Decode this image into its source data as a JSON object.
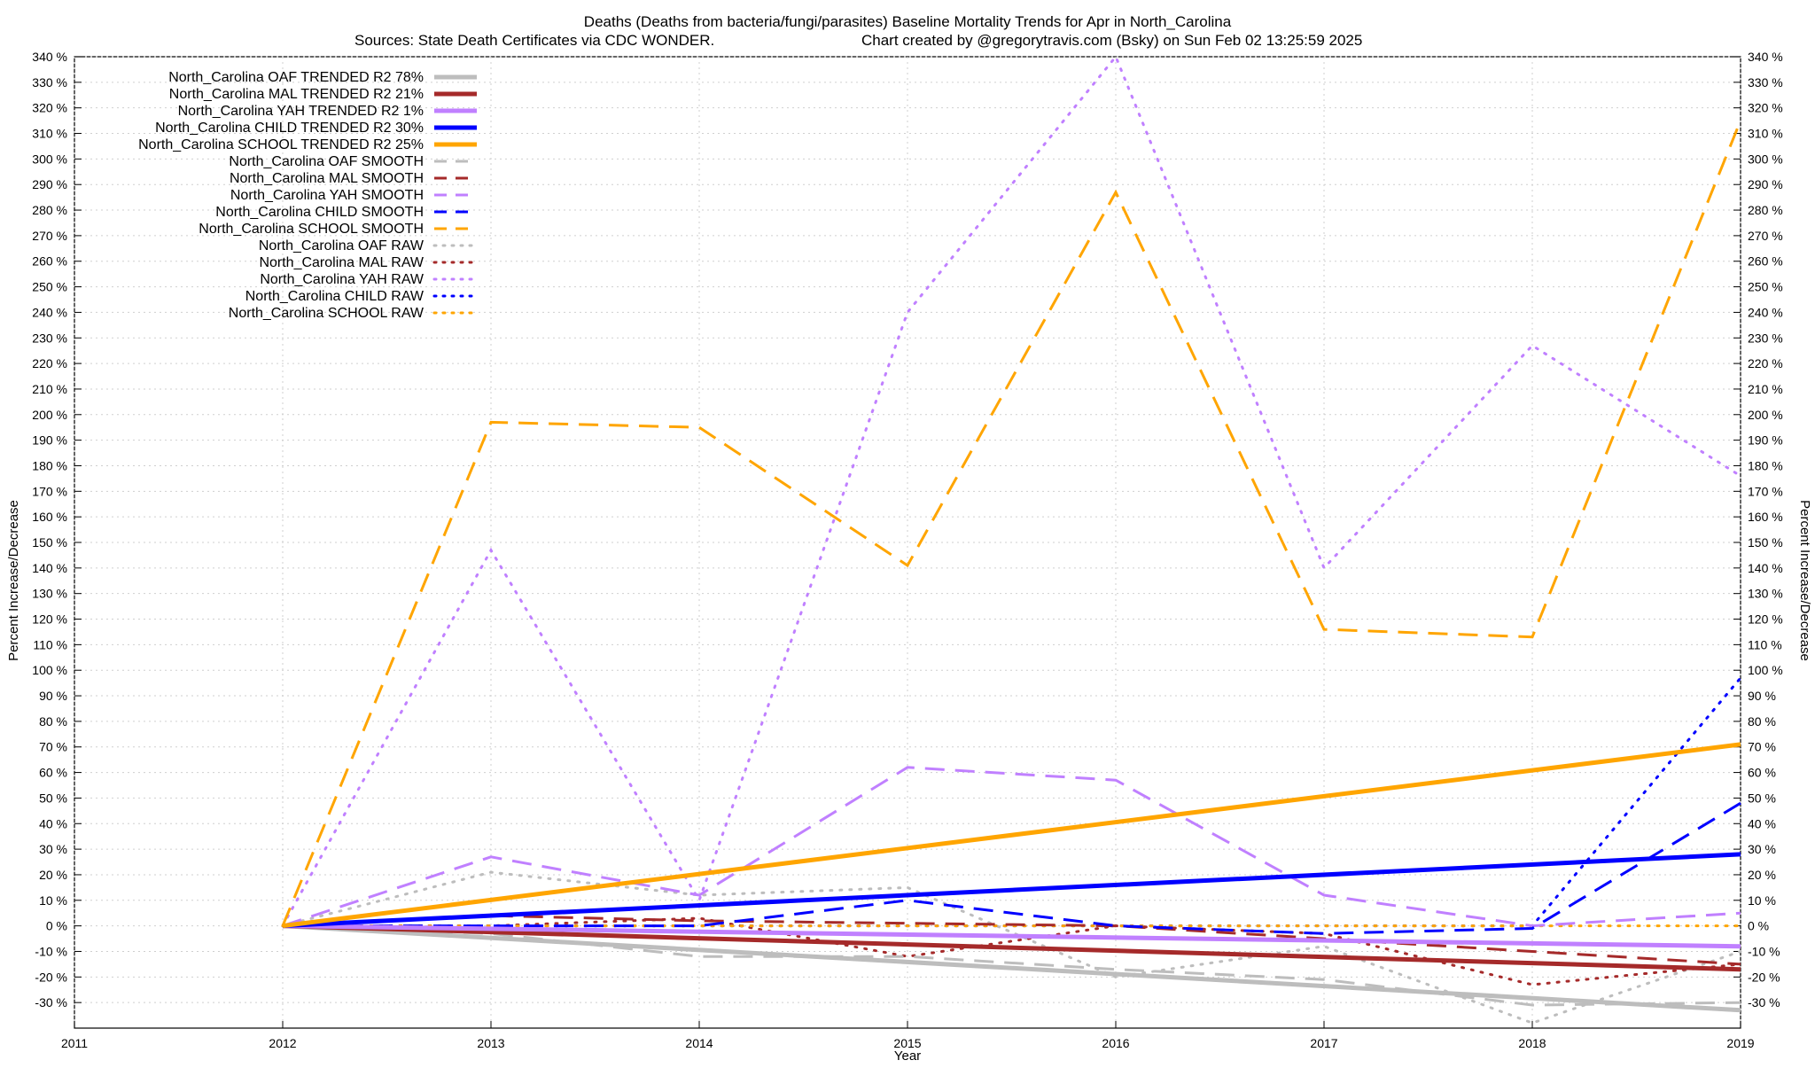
{
  "chart_data": {
    "type": "line",
    "title": "Deaths (Deaths from bacteria/fungi/parasites)  Baseline Mortality Trends for Apr in North_Carolina",
    "subtitle_left": "Sources: State Death Certificates via CDC WONDER.",
    "subtitle_right": "Chart created by @gregorytravis.com (Bsky) on Sun Feb 02 13:25:59 2025",
    "xlabel": "Year",
    "ylabel": "Percent Increase/Decrease",
    "xlim": [
      2011,
      2019
    ],
    "ylim": [
      -40,
      340
    ],
    "x_ticks": [
      "2011",
      "2012",
      "2013",
      "2014",
      "2015",
      "2016",
      "2017",
      "2018",
      "2019"
    ],
    "y_ticks": [
      "-30 %",
      "-20 %",
      "-10 %",
      "0 %",
      "10 %",
      "20 %",
      "30 %",
      "40 %",
      "50 %",
      "60 %",
      "70 %",
      "80 %",
      "90 %",
      "100 %",
      "110 %",
      "120 %",
      "130 %",
      "140 %",
      "150 %",
      "160 %",
      "170 %",
      "180 %",
      "190 %",
      "200 %",
      "210 %",
      "220 %",
      "230 %",
      "240 %",
      "250 %",
      "260 %",
      "270 %",
      "280 %",
      "290 %",
      "300 %",
      "310 %",
      "320 %",
      "330 %",
      "340 %"
    ],
    "grid": true,
    "legend_position": "top-left",
    "series": [
      {
        "name": "North_Carolina OAF TRENDED R2  78%",
        "style": "solid",
        "color": "#bdbdbd",
        "x": [
          2012,
          2019
        ],
        "values": [
          0,
          -33
        ]
      },
      {
        "name": "North_Carolina MAL TRENDED R2  21%",
        "style": "solid",
        "color": "#a52a2a",
        "x": [
          2012,
          2019
        ],
        "values": [
          0,
          -17
        ]
      },
      {
        "name": "North_Carolina YAH TRENDED R2   1%",
        "style": "solid",
        "color": "#c080ff",
        "x": [
          2012,
          2019
        ],
        "values": [
          0,
          -8
        ]
      },
      {
        "name": "North_Carolina CHILD TRENDED R2  30%",
        "style": "solid",
        "color": "#0000ff",
        "x": [
          2012,
          2019
        ],
        "values": [
          0,
          28
        ]
      },
      {
        "name": "North_Carolina SCHOOL TRENDED R2  25%",
        "style": "solid",
        "color": "#ffa500",
        "x": [
          2012,
          2019
        ],
        "values": [
          0,
          71
        ]
      },
      {
        "name": "North_Carolina OAF SMOOTH",
        "style": "dashed",
        "color": "#bdbdbd",
        "x": [
          2012,
          2013,
          2014,
          2015,
          2016,
          2017,
          2018,
          2019
        ],
        "values": [
          0,
          -3,
          -12,
          -12,
          -17,
          -21,
          -31,
          -30
        ]
      },
      {
        "name": "North_Carolina MAL SMOOTH",
        "style": "dashed",
        "color": "#a52a2a",
        "x": [
          2012,
          2013,
          2014,
          2015,
          2016,
          2017,
          2018,
          2019
        ],
        "values": [
          0,
          4,
          2,
          1,
          0,
          -5,
          -10,
          -15
        ]
      },
      {
        "name": "North_Carolina YAH SMOOTH",
        "style": "dashed",
        "color": "#c080ff",
        "x": [
          2012,
          2013,
          2014,
          2015,
          2016,
          2017,
          2018,
          2019
        ],
        "values": [
          0,
          27,
          12,
          62,
          57,
          12,
          0,
          5
        ]
      },
      {
        "name": "North_Carolina CHILD SMOOTH",
        "style": "dashed",
        "color": "#0000ff",
        "x": [
          2012,
          2013,
          2014,
          2015,
          2016,
          2017,
          2018,
          2019
        ],
        "values": [
          0,
          0,
          0,
          10,
          0,
          -3,
          -1,
          48
        ]
      },
      {
        "name": "North_Carolina SCHOOL SMOOTH",
        "style": "dashed",
        "color": "#ffa500",
        "x": [
          2012,
          2013,
          2014,
          2015,
          2016,
          2017,
          2018,
          2019
        ],
        "values": [
          0,
          197,
          195,
          141,
          287,
          116,
          113,
          315
        ]
      },
      {
        "name": "North_Carolina OAF RAW",
        "style": "dotted",
        "color": "#bdbdbd",
        "x": [
          2012,
          2013,
          2014,
          2015,
          2016,
          2017,
          2018,
          2019
        ],
        "values": [
          0,
          21,
          12,
          15,
          -20,
          -8,
          -38,
          -10
        ]
      },
      {
        "name": "North_Carolina MAL RAW",
        "style": "dotted",
        "color": "#a52a2a",
        "x": [
          2012,
          2013,
          2014,
          2015,
          2016,
          2017,
          2018,
          2019
        ],
        "values": [
          0,
          0,
          3,
          -12,
          0,
          -3,
          -23,
          -15
        ]
      },
      {
        "name": "North_Carolina YAH RAW",
        "style": "dotted",
        "color": "#c080ff",
        "x": [
          2012,
          2013,
          2014,
          2015,
          2016,
          2017,
          2018,
          2019
        ],
        "values": [
          0,
          147,
          10,
          240,
          340,
          140,
          227,
          176
        ]
      },
      {
        "name": "North_Carolina CHILD RAW",
        "style": "dotted",
        "color": "#0000ff",
        "x": [
          2012,
          2013,
          2014,
          2015,
          2016,
          2017,
          2018,
          2019
        ],
        "values": [
          0,
          0,
          0,
          0,
          0,
          0,
          0,
          97
        ]
      },
      {
        "name": "North_Carolina SCHOOL RAW",
        "style": "dotted",
        "color": "#ffa500",
        "x": [
          2012,
          2013,
          2014,
          2015,
          2016,
          2017,
          2018,
          2019
        ],
        "values": [
          0,
          0,
          0,
          0,
          0,
          0,
          0,
          0
        ]
      }
    ]
  }
}
